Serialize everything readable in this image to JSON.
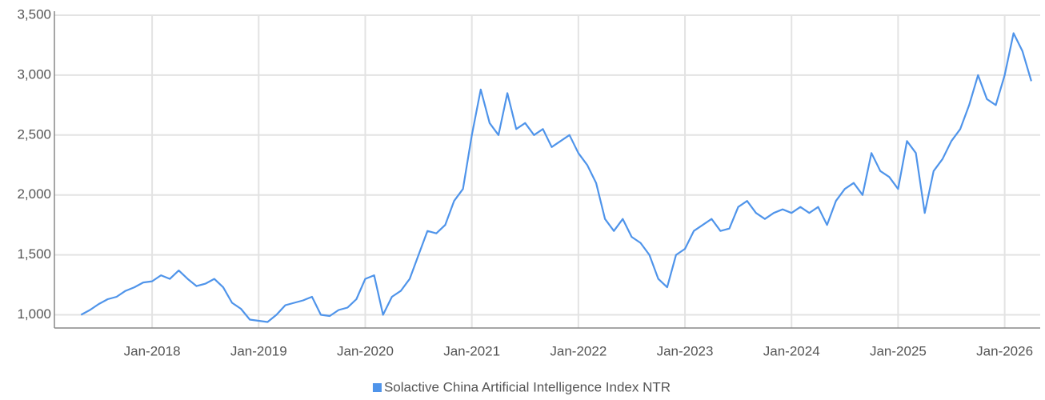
{
  "chart_data": {
    "type": "line",
    "x": [
      "2017-05",
      "2017-06",
      "2017-07",
      "2017-08",
      "2017-09",
      "2017-10",
      "2017-11",
      "2017-12",
      "2018-01",
      "2018-02",
      "2018-03",
      "2018-04",
      "2018-05",
      "2018-06",
      "2018-07",
      "2018-08",
      "2018-09",
      "2018-10",
      "2018-11",
      "2018-12",
      "2019-01",
      "2019-02",
      "2019-03",
      "2019-04",
      "2019-05",
      "2019-06",
      "2019-07",
      "2019-08",
      "2019-09",
      "2019-10",
      "2019-11",
      "2019-12",
      "2020-01",
      "2020-02",
      "2020-03",
      "2020-04",
      "2020-05",
      "2020-06",
      "2020-07",
      "2020-08",
      "2020-09",
      "2020-10",
      "2020-11",
      "2020-12",
      "2021-01",
      "2021-02",
      "2021-03",
      "2021-04",
      "2021-05",
      "2021-06",
      "2021-07",
      "2021-08",
      "2021-09",
      "2021-10",
      "2021-11",
      "2021-12",
      "2022-01",
      "2022-02",
      "2022-03",
      "2022-04",
      "2022-05",
      "2022-06",
      "2022-07",
      "2022-08",
      "2022-09",
      "2022-10",
      "2022-11",
      "2022-12",
      "2023-01",
      "2023-02",
      "2023-03",
      "2023-04",
      "2023-05",
      "2023-06",
      "2023-07",
      "2023-08",
      "2023-09",
      "2023-10",
      "2023-11",
      "2023-12",
      "2024-01",
      "2024-02",
      "2024-03",
      "2024-04",
      "2024-05",
      "2024-06",
      "2024-07",
      "2024-08",
      "2024-09",
      "2024-10",
      "2024-11",
      "2024-12",
      "2025-01",
      "2025-02",
      "2025-03",
      "2025-04",
      "2025-05",
      "2025-06",
      "2025-07",
      "2025-08",
      "2025-09",
      "2025-10",
      "2025-11",
      "2025-12",
      "2026-01",
      "2026-02",
      "2026-03",
      "2026-04"
    ],
    "series": [
      {
        "name": "Solactive China Artificial Intelligence Index NTR",
        "color": "#4f94ea",
        "values": [
          1000,
          1040,
          1090,
          1130,
          1150,
          1200,
          1230,
          1270,
          1280,
          1330,
          1300,
          1370,
          1300,
          1240,
          1260,
          1300,
          1230,
          1100,
          1050,
          960,
          950,
          940,
          1000,
          1080,
          1100,
          1120,
          1150,
          1000,
          990,
          1040,
          1060,
          1130,
          1300,
          1330,
          1000,
          1150,
          1200,
          1300,
          1500,
          1700,
          1680,
          1750,
          1950,
          2050,
          2500,
          2880,
          2600,
          2500,
          2850,
          2550,
          2600,
          2500,
          2550,
          2400,
          2450,
          2500,
          2350,
          2250,
          2100,
          1800,
          1700,
          1800,
          1650,
          1600,
          1500,
          1300,
          1230,
          1500,
          1550,
          1700,
          1750,
          1800,
          1700,
          1720,
          1900,
          1950,
          1850,
          1800,
          1850,
          1880,
          1850,
          1900,
          1850,
          1900,
          1750,
          1950,
          2050,
          2100,
          2000,
          2350,
          2200,
          2150,
          2050,
          2450,
          2350,
          1850,
          2200,
          2300,
          2450,
          2550,
          2750,
          3000,
          2800,
          2750,
          3000,
          3350,
          3200,
          2950
        ]
      }
    ],
    "xlim": [
      "2017-02",
      "2026-05"
    ],
    "xticks": [
      {
        "value": "2018-01",
        "label": "Jan-2018"
      },
      {
        "value": "2019-01",
        "label": "Jan-2019"
      },
      {
        "value": "2020-01",
        "label": "Jan-2020"
      },
      {
        "value": "2021-01",
        "label": "Jan-2021"
      },
      {
        "value": "2022-01",
        "label": "Jan-2022"
      },
      {
        "value": "2023-01",
        "label": "Jan-2023"
      },
      {
        "value": "2024-01",
        "label": "Jan-2024"
      },
      {
        "value": "2025-01",
        "label": "Jan-2025"
      },
      {
        "value": "2026-01",
        "label": "Jan-2026"
      }
    ],
    "ylim": [
      890,
      3500
    ],
    "yticks": [
      {
        "value": 1000,
        "label": "1,000"
      },
      {
        "value": 1500,
        "label": "1,500"
      },
      {
        "value": 2000,
        "label": "2,000"
      },
      {
        "value": 2500,
        "label": "2,500"
      },
      {
        "value": 3000,
        "label": "3,000"
      },
      {
        "value": 3500,
        "label": "3,500"
      }
    ],
    "grid": true,
    "legend": "bottom"
  }
}
